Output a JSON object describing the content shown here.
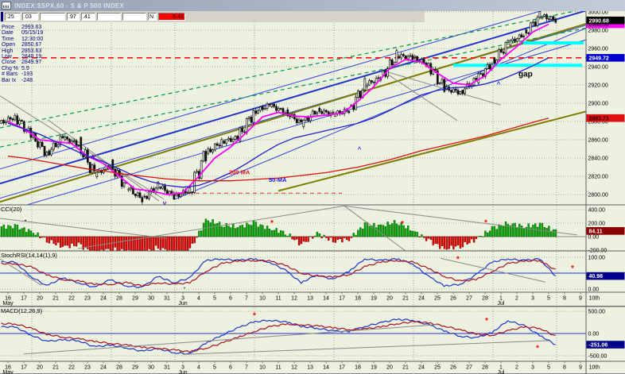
{
  "window": {
    "title": "INDEX:$SPX,60 - S & P 500 INDEX"
  },
  "quote_bar": {
    "cells": [
      {
        "text": ".25"
      },
      {
        "text": ".03"
      },
      {
        "text": ""
      },
      {
        "text": ".97"
      },
      {
        "text": ".41"
      },
      {
        "text": ""
      },
      {
        "text": ""
      },
      {
        "text": "N"
      },
      {
        "text": "-5.41",
        "negative": true
      }
    ]
  },
  "cursor_info": {
    "rows": [
      {
        "label": "Price",
        "value": "2993.63"
      },
      {
        "label": "Date",
        "value": "05/15/19"
      },
      {
        "label": "Time",
        "value": "12:30:00"
      },
      {
        "label": "Open",
        "value": "2850.67"
      },
      {
        "label": "High",
        "value": "2853.63"
      },
      {
        "label": "Low",
        "value": "2848.19"
      },
      {
        "label": "Close",
        "value": "2849.97"
      },
      {
        "label": "Chg %",
        "value": "5.9"
      },
      {
        "label": "# Bars",
        "value": "-193"
      },
      {
        "label": "Bar Ix",
        "value": "-248"
      }
    ]
  },
  "time_axis": {
    "labels": [
      "16",
      "17",
      "20",
      "21",
      "22",
      "23",
      "24",
      "28",
      "29",
      "30",
      "31",
      "3",
      "4",
      "5",
      "6",
      "7",
      "10",
      "11",
      "12",
      "13",
      "14",
      "17",
      "18",
      "19",
      "20",
      "21",
      "24",
      "25",
      "26",
      "27",
      "28",
      "1",
      "2",
      "3",
      "5",
      "8",
      "9"
    ],
    "months": [
      {
        "index": 0,
        "label": "May"
      },
      {
        "index": 11,
        "label": "Jun"
      },
      {
        "index": 31,
        "label": "Jul"
      }
    ],
    "end_label": "10th",
    "week_start_indices": [
      2,
      7,
      11,
      16,
      21,
      26,
      31,
      35
    ]
  },
  "chart_data": [
    {
      "type": "candlestick",
      "name": "S & P 500 INDEX 60-min",
      "ylim": [
        2789,
        3004
      ],
      "yticks": [
        2800,
        2820,
        2840,
        2860,
        2880,
        2900,
        2920,
        2940,
        2960,
        2980,
        3000
      ],
      "open_first": 2878,
      "day_closes": [
        2885,
        2865,
        2845,
        2862,
        2855,
        2822,
        2832,
        2808,
        2795,
        2810,
        2798,
        2805,
        2845,
        2858,
        2862,
        2890,
        2898,
        2890,
        2878,
        2892,
        2888,
        2892,
        2920,
        2928,
        2952,
        2950,
        2942,
        2916,
        2912,
        2926,
        2944,
        2966,
        2975,
        2996,
        2991
      ],
      "last_price": 2990.68,
      "overlays": [
        {
          "name": "ema-fast",
          "color": "#ff00ff",
          "width": 1.8,
          "values": [
            2880,
            2872,
            2860,
            2858,
            2856,
            2842,
            2834,
            2820,
            2806,
            2804,
            2800,
            2802,
            2820,
            2840,
            2852,
            2868,
            2885,
            2890,
            2886,
            2885,
            2887,
            2889,
            2902,
            2918,
            2938,
            2948,
            2945,
            2933,
            2922,
            2920,
            2930,
            2948,
            2962,
            2978,
            2986.5
          ]
        },
        {
          "name": "ma-50",
          "color": "#2020cc",
          "width": 1.3,
          "values": [
            2878,
            2872,
            2866,
            2858,
            2850,
            2842,
            2836,
            2828,
            2820,
            2814,
            2810,
            2808,
            2810,
            2816,
            2824,
            2834,
            2845,
            2855,
            2862,
            2866,
            2870,
            2874,
            2878,
            2884,
            2892,
            2901,
            2909,
            2914,
            2917,
            2918,
            2921,
            2926,
            2933,
            2941,
            2949.7
          ]
        },
        {
          "name": "ma-200",
          "color": "#dd1111",
          "width": 1.3,
          "values": [
            2842,
            2840,
            2837,
            2834,
            2831,
            2828,
            2826,
            2823,
            2821,
            2819,
            2817,
            2816,
            2815,
            2815,
            2815,
            2816,
            2817,
            2818,
            2820,
            2822,
            2824,
            2827,
            2830,
            2834,
            2838,
            2843,
            2848,
            2852,
            2856,
            2860,
            2864,
            2869,
            2874,
            2879,
            2883.7
          ]
        }
      ],
      "hlines": [
        {
          "price": 2949.72,
          "color": "#ff1111",
          "width": 1.6,
          "dash": "7 5",
          "from": 0.2,
          "to": 36.85
        },
        {
          "price": 2801.5,
          "color": "#ee3333",
          "width": 1,
          "dash": "5 4",
          "from": 10.5,
          "to": 21.5
        }
      ],
      "bands": [
        {
          "price": 2966,
          "from": 32.9,
          "to": 36.7,
          "color": "#00ffff",
          "width": 4
        },
        {
          "price": 2941.5,
          "from": 28.5,
          "to": 36.6,
          "color": "#00ffff",
          "width": 4
        }
      ],
      "trendlines": [
        {
          "x1": 0,
          "v1": 2828,
          "x2": 39.3,
          "v2": 3028,
          "color": "#3344dd",
          "width": 1
        },
        {
          "x1": 0,
          "v1": 2812,
          "x2": 39.3,
          "v2": 3014,
          "color": "#2233cc",
          "width": 2
        },
        {
          "x1": 0,
          "v1": 2796,
          "x2": 39.3,
          "v2": 2998,
          "color": "#3344dd",
          "width": 1
        },
        {
          "x1": 0,
          "v1": 2780,
          "x2": 39.3,
          "v2": 2982,
          "color": "#3344dd",
          "width": 1
        },
        {
          "x1": 11,
          "v1": 2795,
          "x2": 39.3,
          "v2": 3000,
          "color": "#3344dd",
          "width": 1
        },
        {
          "x1": 0,
          "v1": 2792,
          "x2": 39.3,
          "v2": 3000,
          "color": "#7d7d00",
          "width": 2
        },
        {
          "x1": 17.5,
          "v1": 2804,
          "x2": 39.3,
          "v2": 2902,
          "color": "#7d7d00",
          "width": 2
        },
        {
          "x1": 0,
          "v1": 2873,
          "x2": 39.3,
          "v2": 3012,
          "color": "#009944",
          "width": 1.2,
          "dash": "5 4"
        },
        {
          "x1": 0,
          "v1": 2852,
          "x2": 39.3,
          "v2": 2991,
          "color": "#009944",
          "width": 1.2,
          "dash": "5 4"
        },
        {
          "x1": 0,
          "v1": 2908,
          "x2": 10.3,
          "v2": 2795,
          "color": "#8a8a8a",
          "width": 1
        },
        {
          "x1": 3,
          "v1": 2882,
          "x2": 10,
          "v2": 2793,
          "color": "#8a8a8a",
          "width": 1
        },
        {
          "x1": 24,
          "v1": 2936,
          "x2": 28.75,
          "v2": 2881,
          "color": "#8a8a8a",
          "width": 1
        },
        {
          "x1": 24,
          "v1": 2936,
          "x2": 31.5,
          "v2": 2898,
          "color": "#8a8a8a",
          "width": 1
        }
      ],
      "labels": [
        {
          "text": "gap",
          "x": 32.6,
          "v": 2929,
          "color": "#000000",
          "size": 10,
          "bold": true
        },
        {
          "text": "200 MA",
          "x": 14.4,
          "v": 2822,
          "color": "#ee1111",
          "size": 7.5,
          "bold": true
        },
        {
          "text": "50-MA",
          "x": 16.9,
          "v": 2814,
          "color": "#2020ee",
          "size": 7.5,
          "bold": true
        }
      ],
      "markers": [
        {
          "x": 5.9,
          "v": 2842,
          "glyph": "v",
          "color": "#7700cc"
        },
        {
          "x": 10.35,
          "v": 2791,
          "glyph": "v",
          "color": "#7700cc"
        },
        {
          "x": 22.6,
          "v": 2851,
          "glyph": "^",
          "color": "#2233ff"
        },
        {
          "x": 31.35,
          "v": 2922,
          "glyph": "^",
          "color": "#2233ff"
        }
      ],
      "badges": [
        {
          "text": "2986.50",
          "value": 2986.5,
          "bg": "#ff00ff",
          "fg": "#40003f"
        },
        {
          "text": "2990.68",
          "value": 2990.68,
          "bg": "#000000",
          "fg": "#ffffff"
        },
        {
          "text": "2949.72",
          "value": 2949.72,
          "bg": "#0000cc",
          "fg": "#ffffff"
        },
        {
          "text": "2883.73",
          "value": 2883.73,
          "bg": "#dd1111",
          "fg": "#2b0000"
        }
      ]
    },
    {
      "type": "bar",
      "name": "CCI(20)",
      "ylim": [
        -245,
        458
      ],
      "yticks": [
        400,
        200,
        0,
        -200
      ],
      "pos_color": "#00a800",
      "neg_color": "#e60000",
      "day_values": [
        150,
        80,
        -50,
        -150,
        -120,
        -250,
        -180,
        -220,
        -260,
        -150,
        -260,
        -200,
        250,
        180,
        140,
        200,
        120,
        60,
        -120,
        40,
        -60,
        -40,
        180,
        160,
        220,
        90,
        -60,
        -180,
        -140,
        -40,
        120,
        200,
        150,
        180,
        84.11
      ],
      "trendlines": [
        {
          "x1": 21.65,
          "v1": 455,
          "x2": 36.3,
          "v2": 25,
          "color": "#8a8a8a",
          "width": 1
        },
        {
          "x1": 21.65,
          "v1": 455,
          "x2": 25.5,
          "v2": -212,
          "color": "#8a8a8a",
          "width": 1
        },
        {
          "x1": 0,
          "v1": 270,
          "x2": 10.5,
          "v2": -25,
          "color": "#8a8a8a",
          "width": 1
        },
        {
          "x1": 4.9,
          "v1": -176,
          "x2": 21.65,
          "v2": 455,
          "color": "#8a8a8a",
          "width": 1
        }
      ],
      "markers": [
        {
          "x": 1.6,
          "v": 247,
          "glyph": "•",
          "color": "#111111"
        },
        {
          "x": 17.1,
          "v": 210,
          "glyph": "*",
          "color": "#ff0000"
        },
        {
          "x": 25.3,
          "v": 200,
          "glyph": "*",
          "color": "#ff0000"
        },
        {
          "x": 30.55,
          "v": 215,
          "glyph": "*",
          "color": "#ff0000"
        },
        {
          "x": 11.4,
          "v": -195,
          "glyph": "•",
          "color": "#008800"
        }
      ],
      "badge": {
        "text": "84.11",
        "value": 84.11,
        "bg": "#8b0000",
        "fg": "#ffffff"
      }
    },
    {
      "type": "line",
      "name": "StochRSI(14,14(1),9)",
      "ylim": [
        0,
        100
      ],
      "yticks": [
        100,
        0
      ],
      "mid_line": {
        "value": 50,
        "color": "#2233cc"
      },
      "series": [
        {
          "name": "fast",
          "color": "#2233cc",
          "width": 1.2,
          "values": [
            85,
            40,
            10,
            35,
            20,
            5,
            30,
            10,
            5,
            40,
            20,
            35,
            90,
            95,
            90,
            95,
            85,
            60,
            20,
            45,
            30,
            55,
            95,
            90,
            95,
            80,
            40,
            10,
            15,
            45,
            85,
            95,
            90,
            95,
            40.98
          ]
        },
        {
          "name": "slow",
          "color": "#aa1122",
          "width": 1.2,
          "values": [
            80,
            70,
            45,
            30,
            25,
            15,
            15,
            20,
            10,
            20,
            15,
            20,
            55,
            80,
            88,
            90,
            88,
            75,
            50,
            40,
            38,
            45,
            70,
            85,
            90,
            85,
            65,
            40,
            25,
            30,
            55,
            80,
            88,
            90,
            60
          ]
        }
      ],
      "trendlines": [
        {
          "x1": 0,
          "v1": 95,
          "x2": 2.6,
          "v2": 12,
          "color": "#8a8a8a",
          "width": 1
        },
        {
          "x1": 27.7,
          "v1": 97,
          "x2": 34.3,
          "v2": 22,
          "color": "#8a8a8a",
          "width": 1
        }
      ],
      "markers": [
        {
          "x": 28.8,
          "v": 96,
          "glyph": "*",
          "color": "#ff0000"
        },
        {
          "x": 36,
          "v": 68,
          "glyph": "*",
          "color": "#ff0000"
        },
        {
          "x": 11.6,
          "v": 5,
          "glyph": "•",
          "color": "#008800"
        }
      ],
      "badge": {
        "text": "40.98",
        "value": 40.98,
        "bg": "#00008b",
        "fg": "#ffffff"
      }
    },
    {
      "type": "line",
      "name": "MACD(12,26,9)",
      "ylim": [
        -560,
        560
      ],
      "yticks": [
        500,
        0,
        -500
      ],
      "zero_line_color": "#2233cc",
      "series": [
        {
          "name": "macd",
          "color": "#2233cc",
          "width": 1.2,
          "values": [
            150,
            -30,
            -180,
            -140,
            -160,
            -300,
            -260,
            -320,
            -400,
            -340,
            -430,
            -460,
            -220,
            -40,
            120,
            260,
            300,
            260,
            160,
            120,
            60,
            40,
            160,
            240,
            320,
            300,
            200,
            60,
            -60,
            -100,
            20,
            290,
            180,
            -40,
            -251.06
          ]
        },
        {
          "name": "signal",
          "color": "#aa1122",
          "width": 1.2,
          "values": [
            220,
            120,
            -20,
            -80,
            -120,
            -180,
            -220,
            -260,
            -310,
            -330,
            -370,
            -410,
            -330,
            -220,
            -90,
            40,
            150,
            210,
            200,
            170,
            130,
            90,
            100,
            150,
            220,
            260,
            240,
            170,
            80,
            -10,
            -40,
            60,
            150,
            120,
            -60
          ]
        }
      ],
      "trendlines": [
        {
          "x1": 1.5,
          "v1": -460,
          "x2": 27.5,
          "v2": 200,
          "color": "#8a8a8a",
          "width": 1
        },
        {
          "x1": 11.5,
          "v1": -470,
          "x2": 34.5,
          "v2": -160,
          "color": "#8a8a8a",
          "width": 1
        }
      ],
      "markers": [
        {
          "x": 16,
          "v": 420,
          "glyph": "*",
          "color": "#ff0000"
        },
        {
          "x": 30.6,
          "v": 300,
          "glyph": "*",
          "color": "#ff0000"
        },
        {
          "x": 33.8,
          "v": -310,
          "glyph": "*",
          "color": "#ff0000"
        },
        {
          "x": 11.35,
          "v": -395,
          "glyph": "•",
          "color": "#008800"
        }
      ],
      "badge": {
        "text": "-251.06",
        "value": -251.06,
        "bg": "#00008b",
        "fg": "#ffffff"
      }
    }
  ]
}
